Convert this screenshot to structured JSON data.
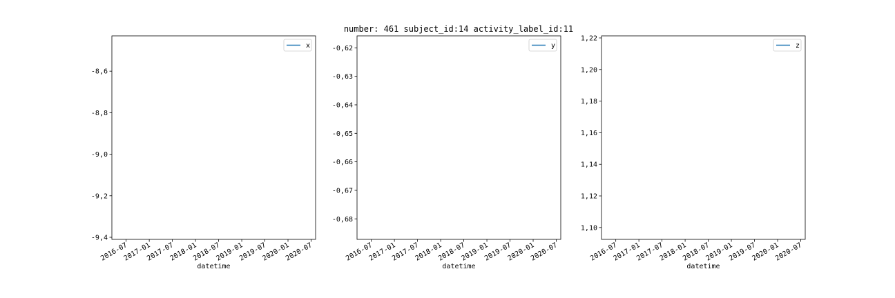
{
  "figure": {
    "title": "number: 461 subject_id:14 activity_label_id:11"
  },
  "chart_data": [
    {
      "type": "line",
      "xlabel": "datetime",
      "ylabel": "",
      "x_ticks": [
        "2016-07",
        "2017-01",
        "2017-07",
        "2018-01",
        "2018-07",
        "2019-01",
        "2019-07",
        "2020-01",
        "2020-07"
      ],
      "y_ticks": [
        "-8,6",
        "-8,8",
        "-9,0",
        "-9,2",
        "-9,4"
      ],
      "y_tick_values": [
        -8.6,
        -8.8,
        -9.0,
        -9.2,
        -9.4
      ],
      "ylim": [
        -9.41,
        -8.43
      ],
      "grid": false,
      "legend_position": "top-right",
      "series": [
        {
          "name": "x",
          "color": "#1f77b4",
          "points": []
        }
      ]
    },
    {
      "type": "line",
      "xlabel": "datetime",
      "ylabel": "",
      "x_ticks": [
        "2016-07",
        "2017-01",
        "2017-07",
        "2018-01",
        "2018-07",
        "2019-01",
        "2019-07",
        "2020-01",
        "2020-07"
      ],
      "y_ticks": [
        "-0,62",
        "-0,63",
        "-0,64",
        "-0,65",
        "-0,66",
        "-0,67",
        "-0,68"
      ],
      "y_tick_values": [
        -0.62,
        -0.63,
        -0.64,
        -0.65,
        -0.66,
        -0.67,
        -0.68
      ],
      "ylim": [
        -0.6872,
        -0.6158
      ],
      "grid": false,
      "legend_position": "top-right",
      "series": [
        {
          "name": "y",
          "color": "#1f77b4",
          "points": []
        }
      ]
    },
    {
      "type": "line",
      "xlabel": "datetime",
      "ylabel": "",
      "x_ticks": [
        "2016-07",
        "2017-01",
        "2017-07",
        "2018-01",
        "2018-07",
        "2019-01",
        "2019-07",
        "2020-01",
        "2020-07"
      ],
      "y_ticks": [
        "1,22",
        "1,20",
        "1,18",
        "1,16",
        "1,14",
        "1,12",
        "1,10"
      ],
      "y_tick_values": [
        1.22,
        1.2,
        1.18,
        1.16,
        1.14,
        1.12,
        1.1
      ],
      "ylim": [
        1.0925,
        1.2213
      ],
      "grid": false,
      "legend_position": "top-right",
      "series": [
        {
          "name": "z",
          "color": "#1f77b4",
          "points": []
        }
      ]
    }
  ]
}
